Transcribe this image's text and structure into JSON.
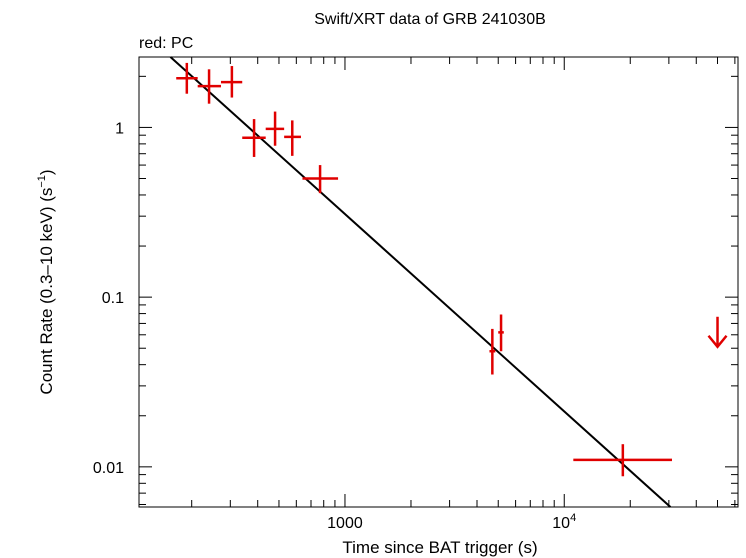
{
  "chart_data": {
    "type": "scatter",
    "title": "Swift/XRT data of GRB 241030B",
    "subtitle": "red: PC",
    "xlabel": "Time since BAT trigger (s)",
    "ylabel_main": "Count Rate (0.3–10 keV) (s",
    "ylabel_sup": "−1",
    "ylabel_end": ")",
    "x_scale": "log",
    "y_scale": "log",
    "xlim": [
      115,
      62000
    ],
    "ylim": [
      0.0058,
      2.6
    ],
    "x_ticks": [
      {
        "value": 1000,
        "label": "1000",
        "sup": ""
      },
      {
        "value": 10000,
        "label": "10",
        "sup": "4"
      }
    ],
    "y_ticks": [
      {
        "value": 1,
        "label": "1"
      },
      {
        "value": 0.1,
        "label": "0.1"
      },
      {
        "value": 0.01,
        "label": "0.01"
      }
    ],
    "colors": {
      "data": "#e00000",
      "model": "#000000"
    },
    "series": [
      {
        "points": [
          {
            "x": 190,
            "xlo": 170,
            "xhi": 213,
            "y": 1.95,
            "ylo": 1.58,
            "yhi": 2.4
          },
          {
            "x": 240,
            "xlo": 213,
            "xhi": 272,
            "y": 1.75,
            "ylo": 1.38,
            "yhi": 2.2
          },
          {
            "x": 305,
            "xlo": 272,
            "xhi": 340,
            "y": 1.85,
            "ylo": 1.5,
            "yhi": 2.3
          },
          {
            "x": 385,
            "xlo": 340,
            "xhi": 435,
            "y": 0.87,
            "ylo": 0.67,
            "yhi": 1.12
          },
          {
            "x": 480,
            "xlo": 435,
            "xhi": 528,
            "y": 0.98,
            "ylo": 0.78,
            "yhi": 1.24
          },
          {
            "x": 575,
            "xlo": 528,
            "xhi": 630,
            "y": 0.88,
            "ylo": 0.68,
            "yhi": 1.1
          },
          {
            "x": 770,
            "xlo": 640,
            "xhi": 930,
            "y": 0.5,
            "ylo": 0.41,
            "yhi": 0.6
          },
          {
            "x": 4700,
            "xlo": 4560,
            "xhi": 4850,
            "y": 0.048,
            "ylo": 0.035,
            "yhi": 0.065
          },
          {
            "x": 5150,
            "xlo": 5000,
            "xhi": 5300,
            "y": 0.062,
            "ylo": 0.048,
            "yhi": 0.079
          },
          {
            "x": 18500,
            "xlo": 11000,
            "xhi": 31000,
            "y": 0.011,
            "ylo": 0.0088,
            "yhi": 0.0136
          }
        ],
        "upper_limits": [
          {
            "x": 50000,
            "y": 0.051
          }
        ]
      }
    ],
    "model_line": [
      {
        "x": 160,
        "y": 2.6
      },
      {
        "x": 30500,
        "y": 0.0058
      }
    ]
  }
}
